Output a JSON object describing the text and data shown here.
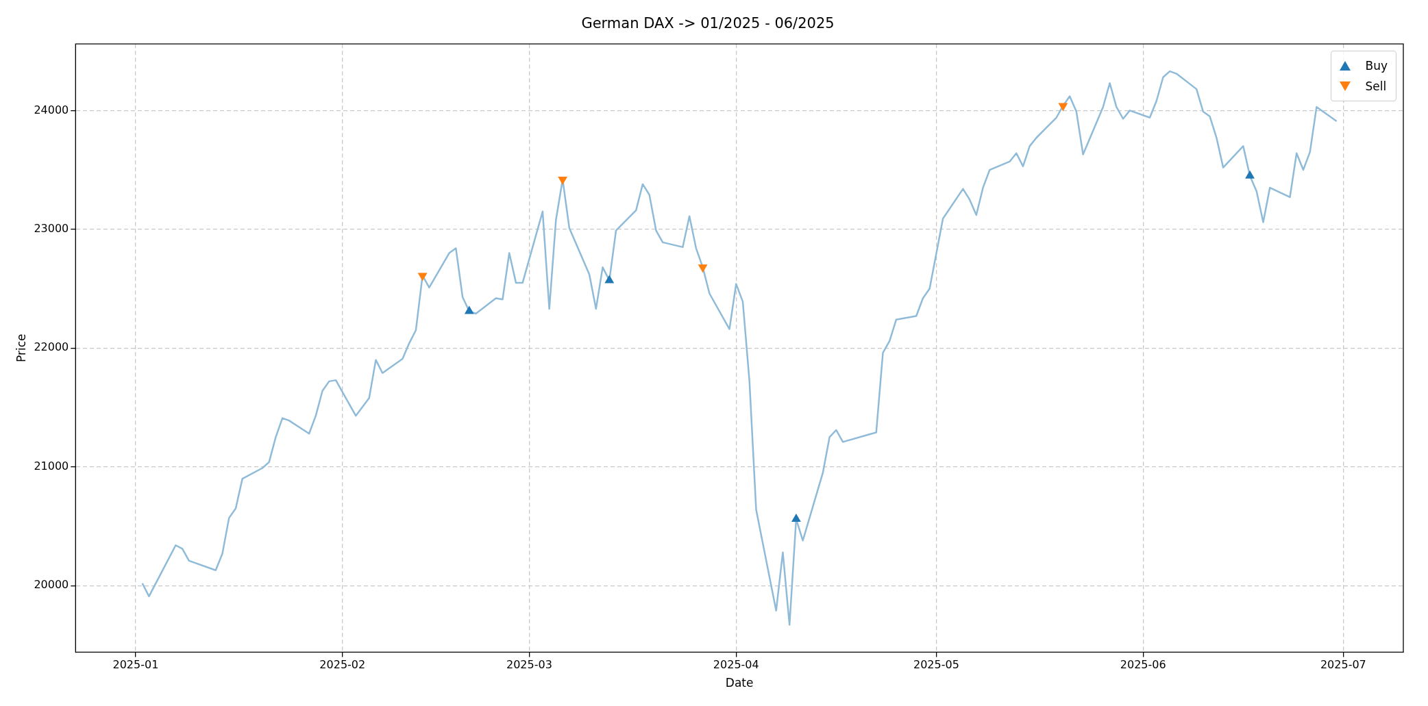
{
  "chart_data": {
    "type": "line",
    "title": "German DAX -> 01/2025 - 06/2025",
    "xlabel": "Date",
    "ylabel": "Price",
    "xlim": [
      "2024-12-23",
      "2025-07-10"
    ],
    "ylim": [
      19440,
      24560
    ],
    "xticks": [
      {
        "value": "2025-01-01",
        "label": "2025-01"
      },
      {
        "value": "2025-02-01",
        "label": "2025-02"
      },
      {
        "value": "2025-03-01",
        "label": "2025-03"
      },
      {
        "value": "2025-04-01",
        "label": "2025-04"
      },
      {
        "value": "2025-05-01",
        "label": "2025-05"
      },
      {
        "value": "2025-06-01",
        "label": "2025-06"
      },
      {
        "value": "2025-07-01",
        "label": "2025-07"
      }
    ],
    "yticks": [
      20000,
      21000,
      22000,
      23000,
      24000
    ],
    "grid": true,
    "legend": "top right",
    "series": [
      {
        "type": "line",
        "color": "#8fbbd9",
        "marker": "none",
        "x": [
          "2025-01-02",
          "2025-01-03",
          "2025-01-07",
          "2025-01-08",
          "2025-01-09",
          "2025-01-13",
          "2025-01-14",
          "2025-01-15",
          "2025-01-16",
          "2025-01-17",
          "2025-01-20",
          "2025-01-21",
          "2025-01-22",
          "2025-01-23",
          "2025-01-24",
          "2025-01-27",
          "2025-01-28",
          "2025-01-29",
          "2025-01-30",
          "2025-01-31",
          "2025-02-03",
          "2025-02-05",
          "2025-02-06",
          "2025-02-07",
          "2025-02-10",
          "2025-02-11",
          "2025-02-12",
          "2025-02-13",
          "2025-02-14",
          "2025-02-17",
          "2025-02-18",
          "2025-02-19",
          "2025-02-20",
          "2025-02-21",
          "2025-02-24",
          "2025-02-25",
          "2025-02-26",
          "2025-02-27",
          "2025-02-28",
          "2025-03-03",
          "2025-03-04",
          "2025-03-05",
          "2025-03-06",
          "2025-03-07",
          "2025-03-10",
          "2025-03-11",
          "2025-03-12",
          "2025-03-13",
          "2025-03-14",
          "2025-03-17",
          "2025-03-18",
          "2025-03-19",
          "2025-03-20",
          "2025-03-21",
          "2025-03-24",
          "2025-03-25",
          "2025-03-26",
          "2025-03-27",
          "2025-03-28",
          "2025-03-31",
          "2025-04-01",
          "2025-04-02",
          "2025-04-03",
          "2025-04-04",
          "2025-04-07",
          "2025-04-08",
          "2025-04-09",
          "2025-04-10",
          "2025-04-11",
          "2025-04-14",
          "2025-04-15",
          "2025-04-16",
          "2025-04-17",
          "2025-04-22",
          "2025-04-23",
          "2025-04-24",
          "2025-04-25",
          "2025-04-28",
          "2025-04-29",
          "2025-04-30",
          "2025-05-02",
          "2025-05-05",
          "2025-05-06",
          "2025-05-07",
          "2025-05-08",
          "2025-05-09",
          "2025-05-12",
          "2025-05-13",
          "2025-05-14",
          "2025-05-15",
          "2025-05-16",
          "2025-05-19",
          "2025-05-20",
          "2025-05-21",
          "2025-05-22",
          "2025-05-23",
          "2025-05-26",
          "2025-05-27",
          "2025-05-28",
          "2025-05-29",
          "2025-05-30",
          "2025-06-02",
          "2025-06-03",
          "2025-06-04",
          "2025-06-05",
          "2025-06-06",
          "2025-06-09",
          "2025-06-10",
          "2025-06-11",
          "2025-06-12",
          "2025-06-13",
          "2025-06-16",
          "2025-06-17",
          "2025-06-18",
          "2025-06-19",
          "2025-06-20",
          "2025-06-23",
          "2025-06-24",
          "2025-06-25",
          "2025-06-26",
          "2025-06-27",
          "2025-06-30"
        ],
        "values": [
          20020,
          19910,
          20340,
          20310,
          20210,
          20130,
          20270,
          20570,
          20650,
          20900,
          20990,
          21040,
          21250,
          21410,
          21390,
          21280,
          21430,
          21640,
          21720,
          21730,
          21430,
          21580,
          21900,
          21790,
          21910,
          22040,
          22150,
          22610,
          22510,
          22800,
          22840,
          22430,
          22310,
          22290,
          22420,
          22410,
          22800,
          22550,
          22550,
          23150,
          22330,
          23080,
          23420,
          23010,
          22620,
          22330,
          22680,
          22570,
          22990,
          23160,
          23380,
          23290,
          22990,
          22890,
          22850,
          23110,
          22840,
          22680,
          22460,
          22160,
          22540,
          22390,
          21720,
          20640,
          19790,
          20280,
          19670,
          20560,
          20380,
          20950,
          21250,
          21310,
          21210,
          21290,
          21960,
          22060,
          22240,
          22270,
          22420,
          22500,
          23090,
          23340,
          23250,
          23120,
          23350,
          23500,
          23570,
          23640,
          23530,
          23700,
          23770,
          23940,
          24040,
          24120,
          23990,
          23630,
          24030,
          24230,
          24030,
          23930,
          24000,
          23940,
          24080,
          24280,
          24330,
          24310,
          24180,
          23990,
          23950,
          23770,
          23520,
          23700,
          23450,
          23320,
          23060,
          23350,
          23270,
          23640,
          23500,
          23650,
          24030,
          23910
        ]
      },
      {
        "type": "scatter",
        "name": "Buy",
        "color": "#1f77b4",
        "marker": "triangle",
        "x": [
          "2025-02-20",
          "2025-03-13",
          "2025-04-10",
          "2025-06-17"
        ],
        "values": [
          22310,
          22570,
          20560,
          23450
        ]
      },
      {
        "type": "scatter",
        "name": "Sell",
        "color": "#ff7f0e",
        "marker": "triangle_down",
        "x": [
          "2025-02-13",
          "2025-03-06",
          "2025-03-27",
          "2025-05-20"
        ],
        "values": [
          22610,
          23420,
          22680,
          24040
        ]
      }
    ]
  }
}
